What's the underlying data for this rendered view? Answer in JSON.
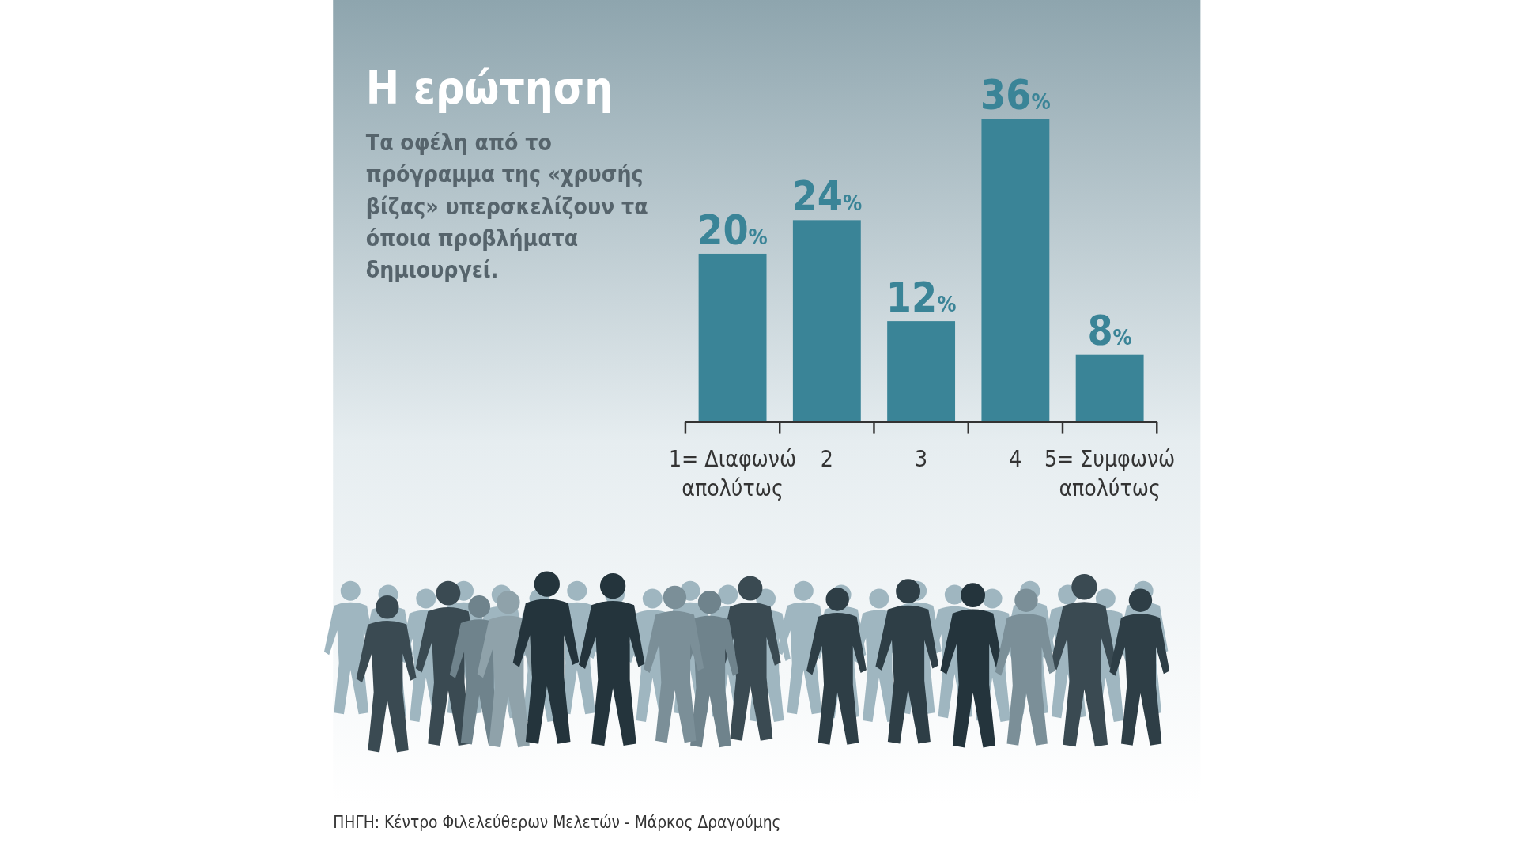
{
  "chart_data": {
    "type": "bar",
    "title": "Η ερώτηση",
    "subtitle": "Τα οφέλη από το πρόγραμμα της «χρυσής βίζας» υπερσκελίζουν τα όποια προβλήματα δημιουργεί.",
    "categories": [
      "1= Διαφωνώ απολύτως",
      "2",
      "3",
      "4",
      "5= Συμφωνώ απολύτως"
    ],
    "values": [
      20,
      24,
      12,
      36,
      8
    ],
    "value_labels": [
      "20%",
      "24%",
      "12%",
      "36%",
      "8%"
    ],
    "color": "#3a8497",
    "annotations": [
      "ΠΗΓΗ: Κέντρο Φιλελεύθερων Μελετών - Μάρκος Δραγούμης"
    ]
  }
}
